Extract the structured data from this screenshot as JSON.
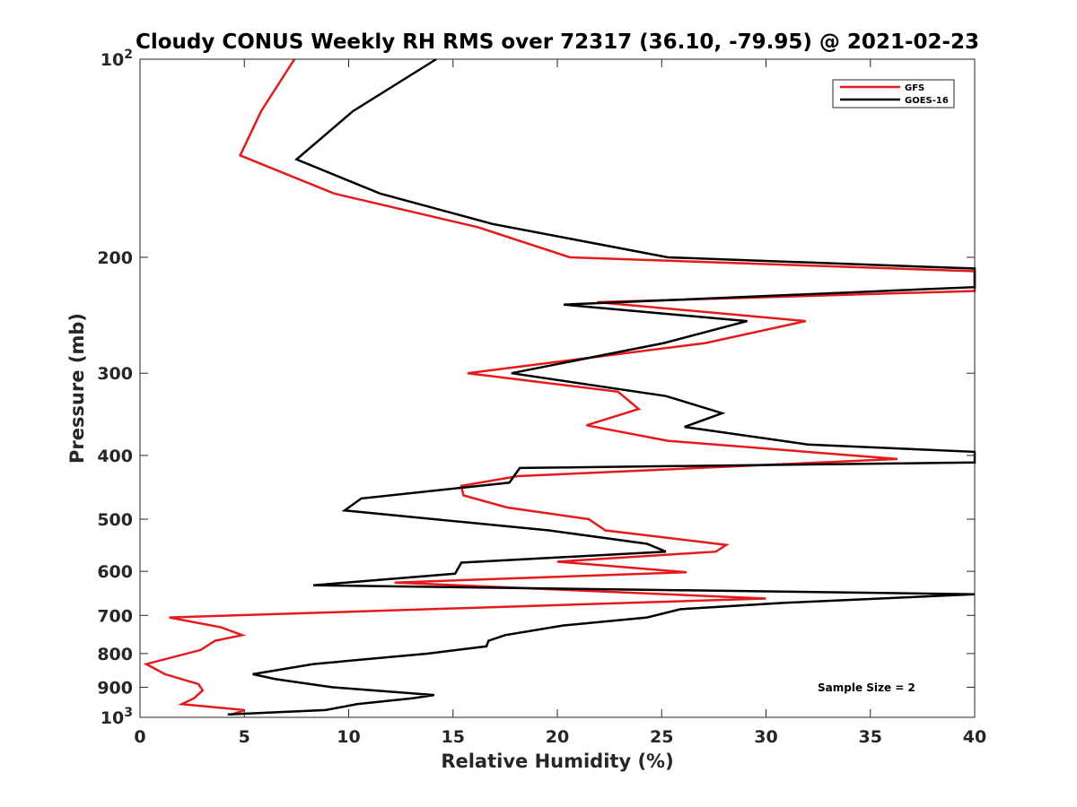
{
  "chart_data": {
    "type": "line",
    "title": "Cloudy CONUS Weekly RH RMS over 72317 (36.10, -79.95) @ 2021-02-23",
    "xlabel": "Relative Humidity (%)",
    "ylabel": "Pressure (mb)",
    "xlim": [
      0,
      40
    ],
    "ylim": [
      100,
      1000
    ],
    "y_scale": "log",
    "y_reversed": true,
    "grid": false,
    "legend_position": "top-right",
    "x_ticks": [
      "0",
      "5",
      "10",
      "15",
      "20",
      "25",
      "30",
      "35",
      "40"
    ],
    "y_ticks": [
      {
        "value": 100,
        "label": "10",
        "sup": "2"
      },
      {
        "value": 200,
        "label": "200",
        "sup": ""
      },
      {
        "value": 300,
        "label": "300",
        "sup": ""
      },
      {
        "value": 400,
        "label": "400",
        "sup": ""
      },
      {
        "value": 500,
        "label": "500",
        "sup": ""
      },
      {
        "value": 600,
        "label": "600",
        "sup": ""
      },
      {
        "value": 700,
        "label": "700",
        "sup": ""
      },
      {
        "value": 800,
        "label": "800",
        "sup": ""
      },
      {
        "value": 900,
        "label": "900",
        "sup": ""
      },
      {
        "value": 1000,
        "label": "10",
        "sup": "3"
      }
    ],
    "series": [
      {
        "name": "GFS",
        "color": "#e41a1c",
        "points": [
          [
            7.4,
            100
          ],
          [
            5.8,
            120
          ],
          [
            4.8,
            140
          ],
          [
            9.3,
            160
          ],
          [
            16.2,
            180
          ],
          [
            20.6,
            200
          ],
          [
            40,
            210
          ],
          [
            40,
            225
          ],
          [
            21.9,
            234
          ],
          [
            31.9,
            250
          ],
          [
            27.1,
            270
          ],
          [
            15.7,
            300
          ],
          [
            22.9,
            320
          ],
          [
            23.9,
            340
          ],
          [
            21.4,
            360
          ],
          [
            25.3,
            380
          ],
          [
            36.3,
            405
          ],
          [
            18.1,
            430
          ],
          [
            15.4,
            445
          ],
          [
            15.5,
            460
          ],
          [
            17.6,
            480
          ],
          [
            21.5,
            500
          ],
          [
            22.3,
            520
          ],
          [
            28.1,
            547
          ],
          [
            27.6,
            560
          ],
          [
            20.0,
            580
          ],
          [
            26.2,
            602
          ],
          [
            12.2,
            624
          ],
          [
            30.0,
            660
          ],
          [
            1.4,
            705
          ],
          [
            3.9,
            730
          ],
          [
            4.9,
            750
          ],
          [
            3.6,
            765
          ],
          [
            2.9,
            790
          ],
          [
            0.3,
            830
          ],
          [
            1.2,
            860
          ],
          [
            2.8,
            890
          ],
          [
            3.0,
            910
          ],
          [
            2.6,
            935
          ],
          [
            2.0,
            955
          ],
          [
            5.0,
            975
          ],
          [
            4.4,
            990
          ]
        ]
      },
      {
        "name": "GOES-16",
        "color": "#000000",
        "points": [
          [
            14.2,
            100
          ],
          [
            10.2,
            120
          ],
          [
            7.5,
            142
          ],
          [
            11.5,
            160
          ],
          [
            16.9,
            178
          ],
          [
            25.3,
            200
          ],
          [
            40,
            208
          ],
          [
            40,
            222
          ],
          [
            20.3,
            236
          ],
          [
            29.1,
            250
          ],
          [
            25.1,
            270
          ],
          [
            17.8,
            300
          ],
          [
            25.2,
            325
          ],
          [
            27.9,
            345
          ],
          [
            26.1,
            362
          ],
          [
            32.0,
            385
          ],
          [
            40,
            395
          ],
          [
            40,
            410
          ],
          [
            18.2,
            418
          ],
          [
            17.7,
            440
          ],
          [
            10.6,
            465
          ],
          [
            9.8,
            485
          ],
          [
            19.6,
            520
          ],
          [
            24.3,
            545
          ],
          [
            25.2,
            560
          ],
          [
            15.4,
            582
          ],
          [
            15.1,
            605
          ],
          [
            8.3,
            630
          ],
          [
            40,
            650
          ],
          [
            30.9,
            670
          ],
          [
            25.9,
            685
          ],
          [
            24.3,
            705
          ],
          [
            20.3,
            725
          ],
          [
            17.5,
            750
          ],
          [
            16.7,
            765
          ],
          [
            16.6,
            780
          ],
          [
            13.8,
            800
          ],
          [
            8.3,
            830
          ],
          [
            5.4,
            860
          ],
          [
            6.5,
            875
          ],
          [
            9.2,
            900
          ],
          [
            14.1,
            925
          ],
          [
            13.1,
            935
          ],
          [
            10.4,
            955
          ],
          [
            8.9,
            975
          ],
          [
            4.2,
            990
          ]
        ]
      }
    ],
    "annotations": [
      "Sample Size = 2"
    ]
  }
}
